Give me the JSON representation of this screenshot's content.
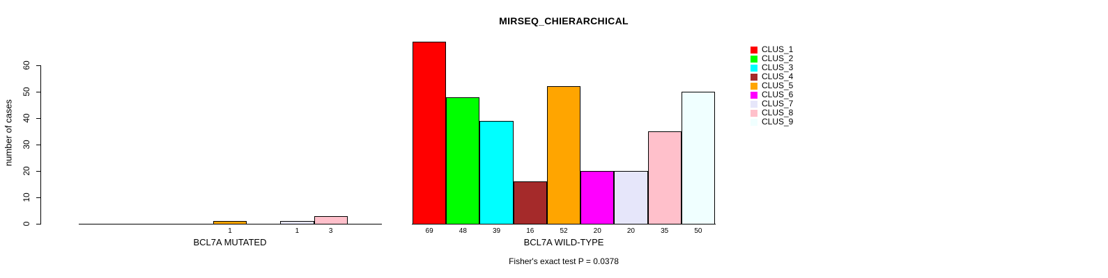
{
  "title": "MIRSEQ_CHIERARCHICAL",
  "chart_data": {
    "type": "bar",
    "title": "MIRSEQ_CHIERARCHICAL",
    "ylabel": "number of cases",
    "ylim": [
      0,
      69
    ],
    "yticks": [
      0,
      10,
      20,
      30,
      40,
      50,
      60
    ],
    "grid": false,
    "legend_position": "right",
    "categories": [
      "CLUS_1",
      "CLUS_2",
      "CLUS_3",
      "CLUS_4",
      "CLUS_5",
      "CLUS_6",
      "CLUS_7",
      "CLUS_8",
      "CLUS_9"
    ],
    "colors": [
      "#FF0000",
      "#00FF00",
      "#00FFFF",
      "#A52A2A",
      "#FFA500",
      "#FF00FF",
      "#E6E6FA",
      "#FFC0CB",
      "#F0FFFF"
    ],
    "groups": [
      {
        "key": "mutated",
        "label": "BCL7A MUTATED",
        "values": [
          0,
          0,
          0,
          0,
          1,
          0,
          1,
          3,
          0
        ]
      },
      {
        "key": "wildtype",
        "label": "BCL7A WILD-TYPE",
        "values": [
          69,
          48,
          39,
          16,
          52,
          20,
          20,
          35,
          50
        ]
      }
    ],
    "annotation": "Fisher's exact test P = 0.0378"
  }
}
